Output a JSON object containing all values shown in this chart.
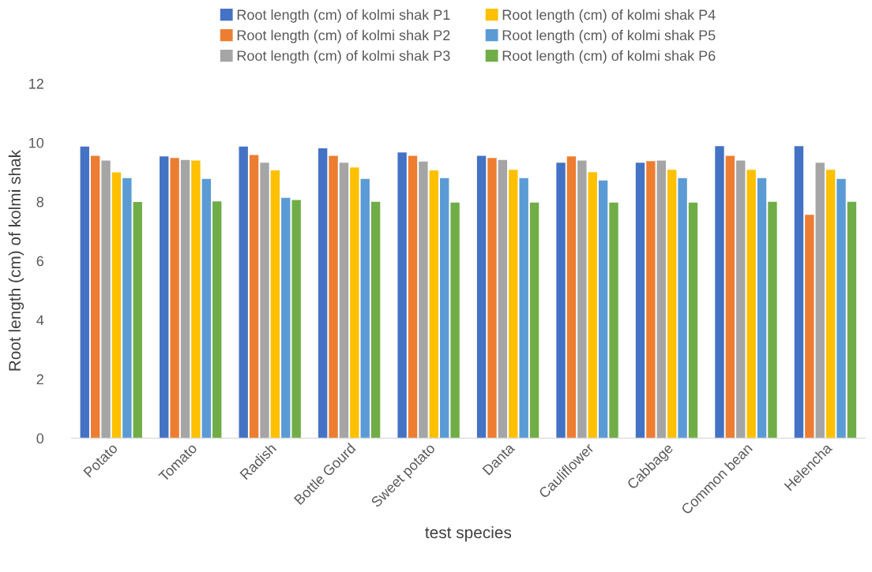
{
  "chart_data": {
    "type": "bar",
    "xlabel": "test species",
    "ylabel": "Root length (cm) of kolmi shak",
    "categories": [
      "Potato",
      "Tomato",
      "Radish",
      "Bottle Gourd",
      "Sweet potato",
      "Danta",
      "Cauliflower",
      "Cabbage",
      "Common bean",
      "Helencha"
    ],
    "series": [
      {
        "name": "Root length (cm) of kolmi shak P1",
        "color": "#4472c4",
        "values": [
          9.87,
          9.53,
          9.87,
          9.81,
          9.67,
          9.55,
          9.32,
          9.32,
          9.88,
          9.88
        ]
      },
      {
        "name": "Root length (cm) of kolmi shak P2",
        "color": "#ed7d31",
        "values": [
          9.55,
          9.48,
          9.58,
          9.55,
          9.55,
          9.48,
          9.53,
          9.37,
          9.55,
          7.56
        ]
      },
      {
        "name": "Root length (cm) of kolmi shak P3",
        "color": "#a5a5a5",
        "values": [
          9.39,
          9.41,
          9.32,
          9.32,
          9.36,
          9.41,
          9.39,
          9.39,
          9.39,
          9.32
        ]
      },
      {
        "name": "Root length (cm) of kolmi shak P4",
        "color": "#ffc000",
        "values": [
          8.99,
          9.39,
          9.06,
          9.16,
          9.06,
          9.08,
          9.0,
          9.08,
          9.08,
          9.08
        ]
      },
      {
        "name": "Root length (cm) of kolmi shak P5",
        "color": "#5b9bd5",
        "values": [
          8.8,
          8.77,
          8.13,
          8.77,
          8.8,
          8.8,
          8.72,
          8.8,
          8.8,
          8.77
        ]
      },
      {
        "name": "Root length (cm) of kolmi shak P6",
        "color": "#70ad47",
        "values": [
          7.99,
          8.01,
          8.06,
          8.0,
          7.97,
          7.97,
          7.97,
          7.97,
          8.0,
          8.0
        ]
      }
    ],
    "ylim": [
      0,
      12
    ],
    "yticks": [
      0,
      2,
      4,
      6,
      8,
      10,
      12
    ],
    "grid": false,
    "legend": "top"
  }
}
